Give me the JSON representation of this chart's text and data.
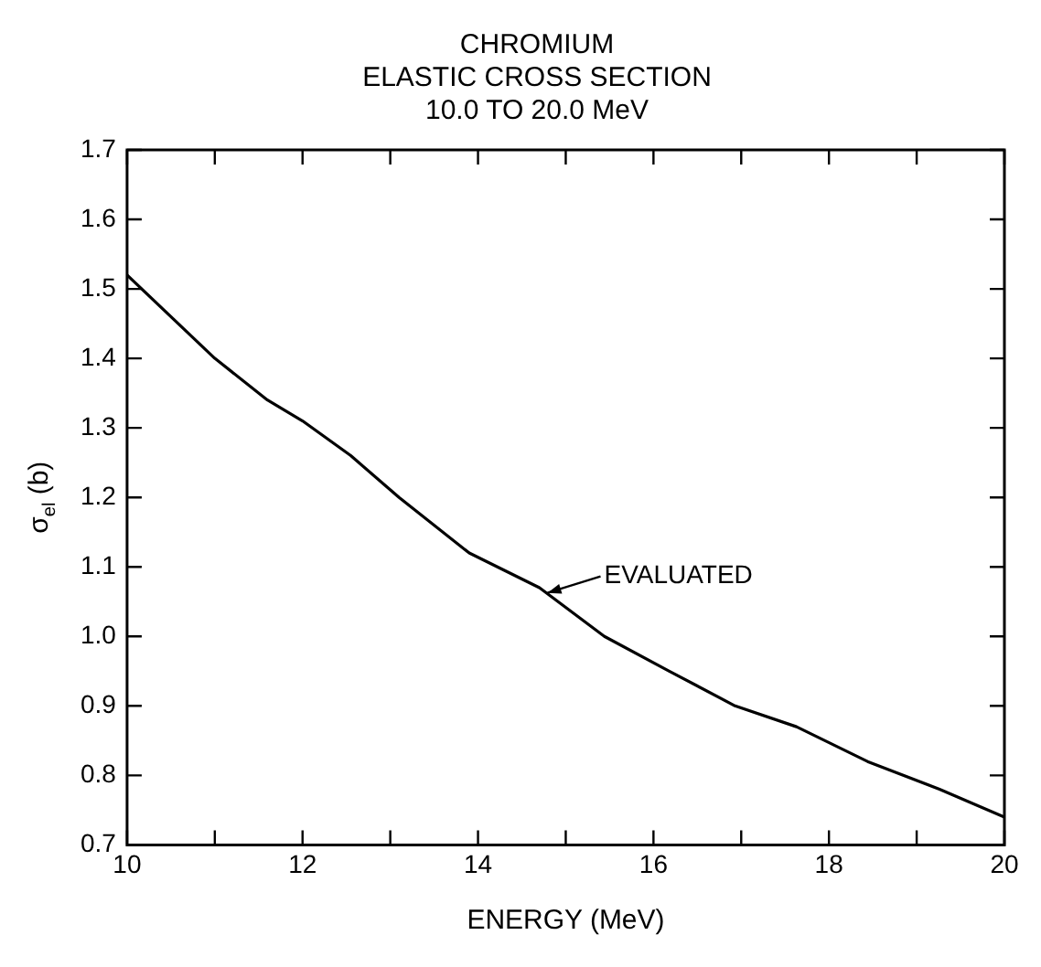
{
  "chart_data": {
    "type": "line",
    "title": "CHROMIUM\nELASTIC CROSS SECTION\n10.0 TO 20.0 MeV",
    "xlabel": "ENERGY (MeV)",
    "ylabel": "σ$_{el}$ (b)",
    "x": [
      10,
      11,
      11.6,
      12,
      12.55,
      13.1,
      13.9,
      14.7,
      15.44,
      16.18,
      16.93,
      17.63,
      18.44,
      19.26,
      20
    ],
    "series": [
      {
        "color": "#000000",
        "values": [
          1.52,
          1.4,
          1.34,
          1.31,
          1.26,
          1.2,
          1.12,
          1.07,
          1.0,
          0.95,
          0.9,
          0.87,
          0.82,
          0.78,
          0.74
        ]
      }
    ],
    "xlim": [
      10,
      20
    ],
    "xticks": [
      10,
      {
        "value": 11,
        "label": null
      },
      12,
      {
        "value": 13,
        "label": null
      },
      14,
      {
        "value": 15,
        "label": null
      },
      16,
      {
        "value": 17,
        "label": null
      },
      18,
      {
        "value": 19,
        "label": null
      },
      20
    ],
    "ylim": [
      0.7,
      1.7
    ],
    "yticks": [
      0.7,
      0.8,
      0.9,
      {
        "value": 1.0,
        "label": "1.0"
      },
      1.1,
      1.2,
      1.3,
      1.4,
      1.5,
      1.6,
      1.7
    ],
    "annotations": [
      {
        "text": "EVALUATED",
        "x": 14.75,
        "y": 1.06
      }
    ],
    "grid": false,
    "legend": false,
    "marker": "none",
    "line_style": "solid"
  }
}
